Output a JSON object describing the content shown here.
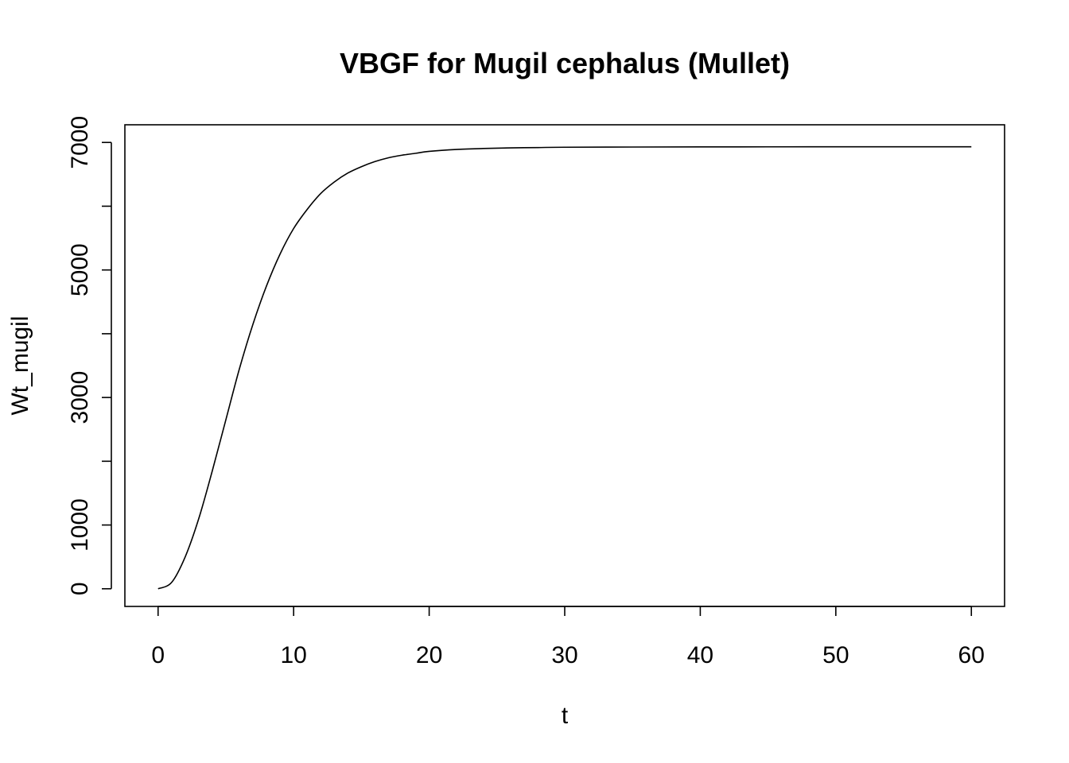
{
  "chart_data": {
    "type": "line",
    "title": "VBGF for Mugil cephalus (Mullet)",
    "xlabel": "t",
    "ylabel": "Wt_mugil",
    "xlim": [
      -2.45,
      62.45
    ],
    "ylim": [
      -277,
      7277
    ],
    "x_ticks": [
      0,
      10,
      20,
      30,
      40,
      50,
      60
    ],
    "y_ticks": [
      0,
      1000,
      2000,
      3000,
      4000,
      5000,
      6000,
      7000
    ],
    "y_tick_labels": [
      "0",
      "1000",
      "",
      "3000",
      "",
      "5000",
      "",
      "7000"
    ],
    "grid": false,
    "series": [
      {
        "x": [
          0,
          1,
          2,
          3,
          4,
          5,
          6,
          7,
          8,
          9,
          10,
          11,
          12,
          13,
          14,
          15,
          16,
          17,
          18,
          19,
          20,
          22,
          24,
          26,
          28,
          30,
          35,
          40,
          45,
          50,
          55,
          60
        ],
        "y": [
          0,
          100,
          500,
          1100,
          1850,
          2650,
          3450,
          4150,
          4750,
          5250,
          5650,
          5950,
          6200,
          6380,
          6520,
          6620,
          6700,
          6760,
          6800,
          6830,
          6860,
          6890,
          6905,
          6915,
          6920,
          6925,
          6928,
          6930,
          6931,
          6932,
          6932,
          6932
        ]
      }
    ]
  }
}
